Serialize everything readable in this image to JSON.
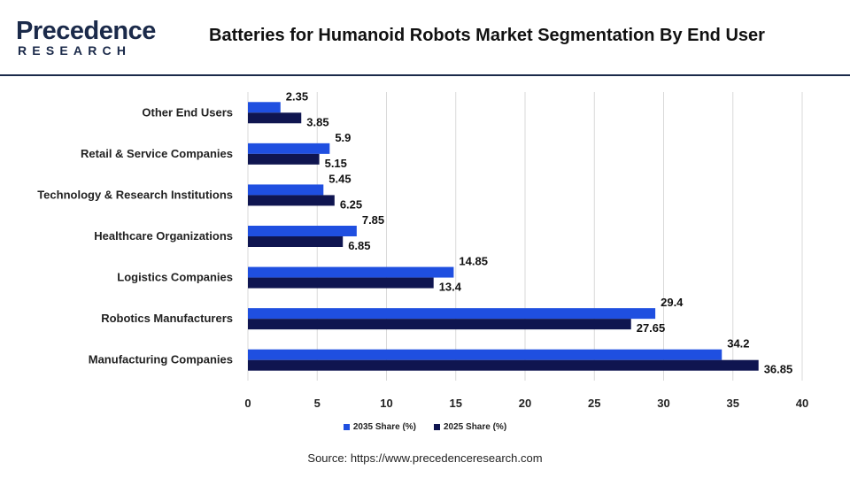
{
  "brand": {
    "name": "Precedence",
    "sub": "RESEARCH"
  },
  "title": "Batteries for Humanoid Robots Market Segmentation By End User",
  "source": "Source: https://www.precedenceresearch.com",
  "colors": {
    "series_2035": "#1f4fe0",
    "series_2025": "#0f1550",
    "grid": "#d9d9d9",
    "header_rule": "#1b2a4a"
  },
  "chart_data": {
    "type": "bar",
    "orientation": "horizontal",
    "title": "Batteries for Humanoid Robots Market Segmentation By End User",
    "categories": [
      "Other End Users",
      "Retail & Service Companies",
      "Technology & Research Institutions",
      "Healthcare Organizations",
      "Logistics Companies",
      "Robotics Manufacturers",
      "Manufacturing Companies"
    ],
    "series": [
      {
        "name": "2035 Share (%)",
        "color": "#1f4fe0",
        "values": [
          2.35,
          5.9,
          5.45,
          7.85,
          14.85,
          29.4,
          34.2
        ]
      },
      {
        "name": "2025 Share (%)",
        "color": "#0f1550",
        "values": [
          3.85,
          5.15,
          6.25,
          6.85,
          13.4,
          27.65,
          36.85
        ]
      }
    ],
    "x_ticks": [
      0,
      5,
      10,
      15,
      20,
      25,
      30,
      35,
      40
    ],
    "xlim": [
      0,
      40
    ],
    "grid": "vertical",
    "legend": "bottom-center",
    "data_labels": true
  }
}
